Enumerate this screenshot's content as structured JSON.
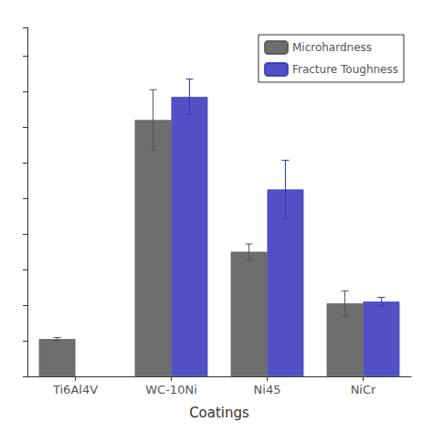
{
  "chart_data": {
    "type": "bar",
    "xlabel": "Coatings",
    "categories": [
      "Ti6Al4V",
      "WC-10Ni",
      "Ni45",
      "NiCr"
    ],
    "series": [
      {
        "name": "Microhardness",
        "color": "#555555",
        "values": [
          1.05,
          7.2,
          3.5,
          2.05
        ],
        "errors": [
          0.04,
          0.85,
          0.22,
          0.35
        ]
      },
      {
        "name": "Fracture Toughness",
        "color": "#3333bb",
        "values": [
          null,
          7.85,
          5.25,
          2.1
        ],
        "errors": [
          null,
          0.5,
          0.82,
          0.12
        ]
      }
    ],
    "ylim": [
      0,
      9.8
    ],
    "yticks": [
      0,
      1,
      2,
      3,
      4,
      5,
      6,
      7,
      8,
      9
    ],
    "tick_labels": "x",
    "grid": false,
    "legend": "upper right"
  }
}
